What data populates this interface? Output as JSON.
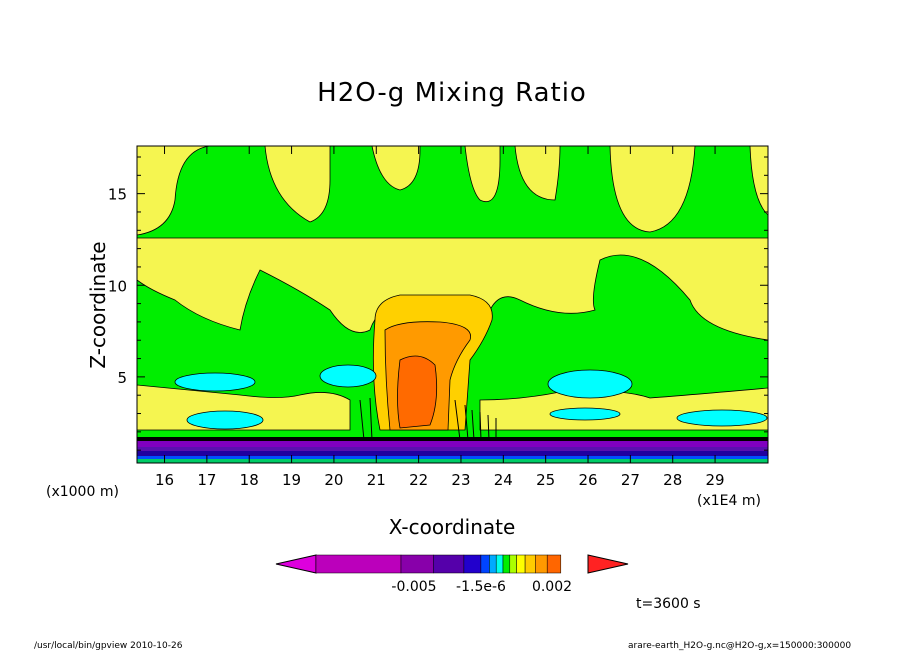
{
  "title": "H2O-g Mixing Ratio",
  "colors": {
    "background_field": "#00ee00",
    "band_yellow": "#f0f050",
    "cyan": "#00ffff",
    "orange_light": "#ffb300",
    "orange": "#ff8000",
    "orange_dark": "#ee6000",
    "purple": "#8000c0",
    "dark_blue": "#2000a0",
    "magenta": "#cc00cc"
  },
  "chart_data": {
    "type": "heatmap",
    "title": "H2O-g Mixing Ratio",
    "xlabel": "X-coordinate",
    "ylabel": "Z-coordinate",
    "x_unit_left": "(x1000 m)",
    "x_unit_right": "(x1E4 m)",
    "xlim": [
      15.35,
      30.25
    ],
    "ylim": [
      0.3,
      17.6
    ],
    "x_ticks": [
      16,
      17,
      18,
      19,
      20,
      21,
      22,
      23,
      24,
      25,
      26,
      27,
      28,
      29
    ],
    "y_ticks": [
      5,
      10,
      15
    ],
    "colorbar": {
      "labels": [
        "-0.005",
        "-1.5e-6",
        "0.002"
      ],
      "colors": [
        "#dd00dd",
        "#bb00bb",
        "#8800aa",
        "#5500aa",
        "#2200cc",
        "#0044ff",
        "#00aaff",
        "#00ffee",
        "#00ee00",
        "#aaff00",
        "#ffff00",
        "#ffcc00",
        "#ff9900",
        "#ff6600",
        "#ff2222"
      ]
    },
    "time_label": "t=3600 s",
    "grid": false
  },
  "footer": {
    "left": "/usr/local/bin/gpview  2010-10-26",
    "right": "arare-earth_H2O-g.nc@H2O-g,x=150000:300000"
  }
}
